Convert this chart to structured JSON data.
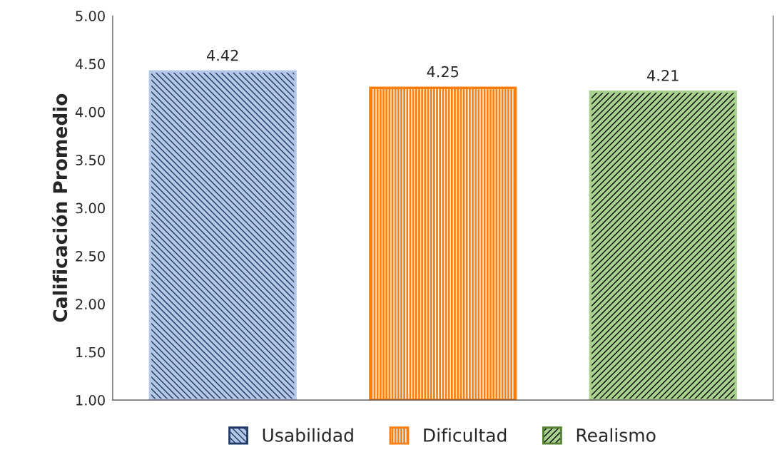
{
  "chart_data": {
    "type": "bar",
    "ylabel": "Calificación Promedio",
    "categories": [
      null,
      null,
      null
    ],
    "series": [
      {
        "name": "Usabilidad",
        "color": "#b4c7e7",
        "values": [
          4.42,
          null,
          null
        ]
      },
      {
        "name": "Dificultad",
        "color": "#ff7f0e",
        "values": [
          null,
          4.25,
          null
        ]
      },
      {
        "name": "Realismo",
        "color": "#a9d18e",
        "values": [
          null,
          null,
          4.21
        ]
      }
    ],
    "ylim": [
      1.0,
      5.0
    ],
    "yticks": [
      {
        "value": 1.0,
        "label": "1.00"
      },
      {
        "value": 1.5,
        "label": "1.50"
      },
      {
        "value": 2.0,
        "label": "2.00"
      },
      {
        "value": 2.5,
        "label": "2.50"
      },
      {
        "value": 3.0,
        "label": "3.00"
      },
      {
        "value": 3.5,
        "label": "3.50"
      },
      {
        "value": 4.0,
        "label": "4.00"
      },
      {
        "value": 4.5,
        "label": "4.50"
      },
      {
        "value": 5.0,
        "label": "5.00"
      }
    ],
    "data_labels": true,
    "grid": false,
    "legend": "bottom"
  }
}
